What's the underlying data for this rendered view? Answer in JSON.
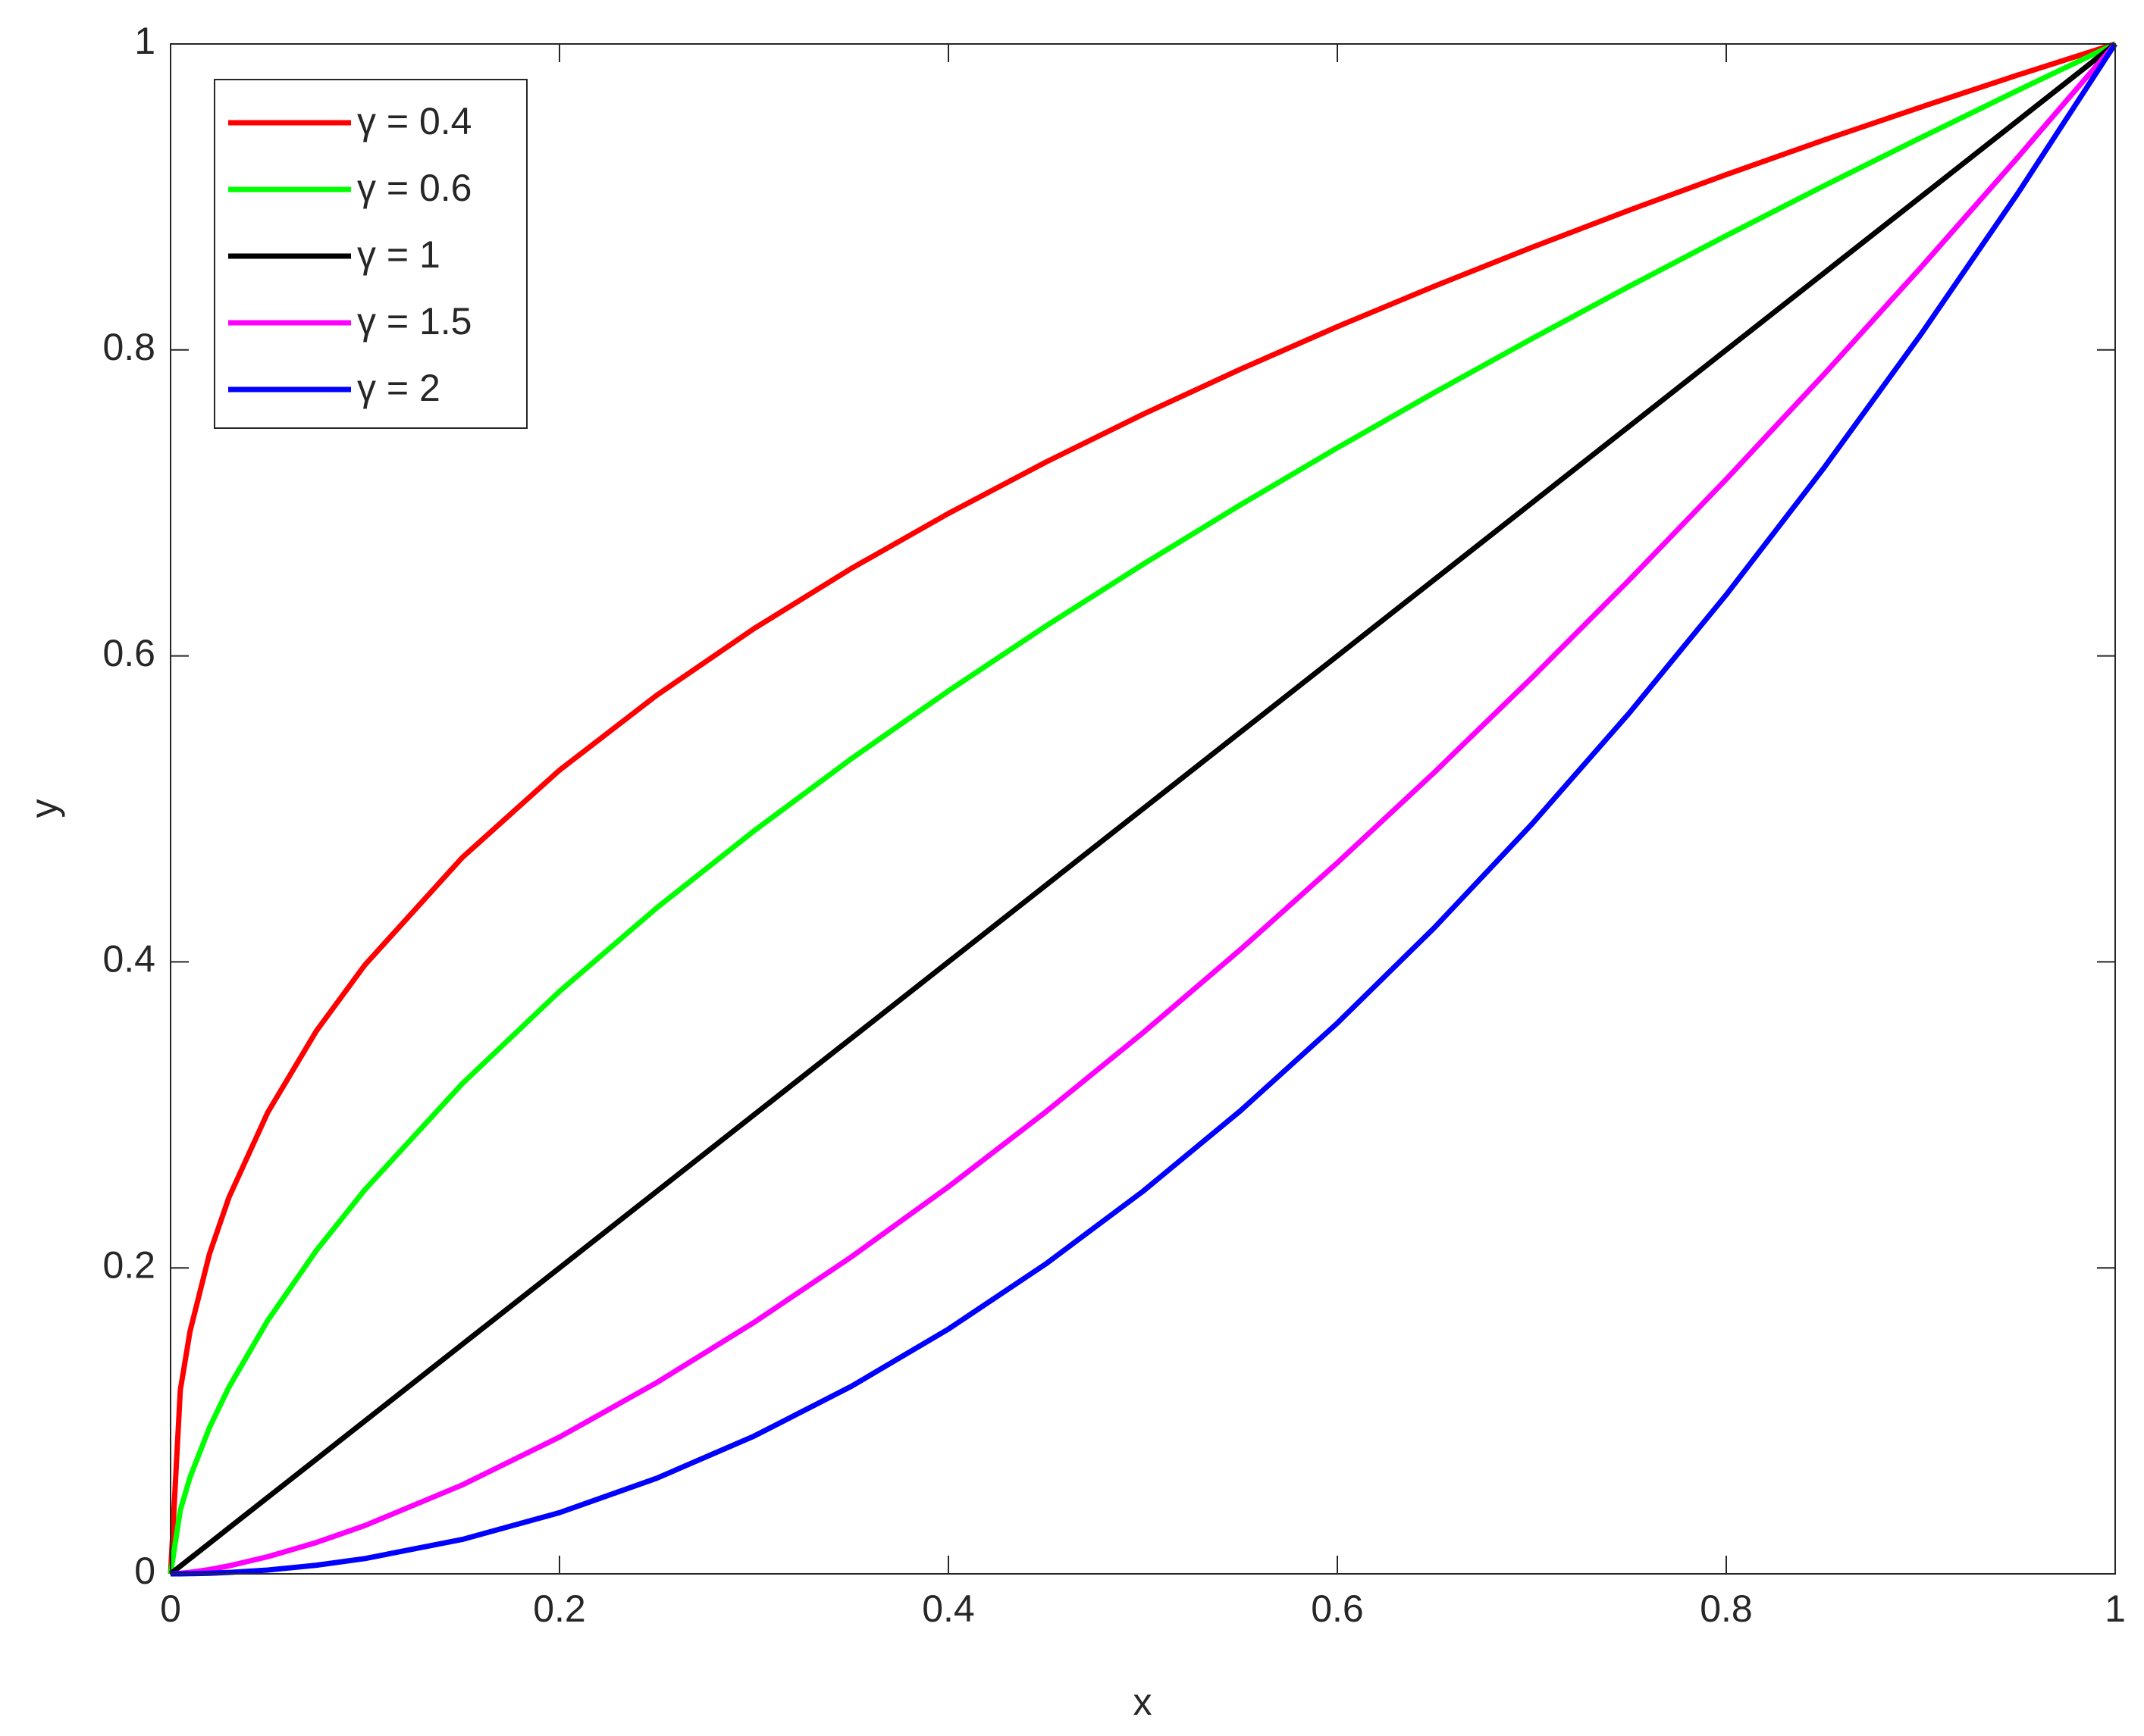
{
  "chart_data": {
    "type": "line",
    "xlabel": "x",
    "ylabel": "y",
    "x": [
      0,
      0.005,
      0.01,
      0.02,
      0.03,
      0.05,
      0.075,
      0.1,
      0.15,
      0.2,
      0.25,
      0.3,
      0.35,
      0.4,
      0.45,
      0.5,
      0.55,
      0.6,
      0.65,
      0.7,
      0.75,
      0.8,
      0.85,
      0.9,
      0.95,
      1
    ],
    "series": [
      {
        "name": "γ = 0.4",
        "color": "#ff0000",
        "values": [
          0,
          0.1201,
          0.1585,
          0.2091,
          0.246,
          0.3017,
          0.3549,
          0.3981,
          0.4682,
          0.5253,
          0.5743,
          0.6178,
          0.6571,
          0.6931,
          0.7266,
          0.7579,
          0.7873,
          0.8152,
          0.8417,
          0.867,
          0.8913,
          0.9146,
          0.9371,
          0.9587,
          0.9797,
          1
        ]
      },
      {
        "name": "γ = 0.6",
        "color": "#00ff00",
        "values": [
          0,
          0.0416,
          0.0631,
          0.0956,
          0.122,
          0.1657,
          0.2114,
          0.2512,
          0.3204,
          0.3807,
          0.4353,
          0.4856,
          0.5327,
          0.5771,
          0.6194,
          0.6598,
          0.6986,
          0.736,
          0.7722,
          0.8073,
          0.8415,
          0.8747,
          0.9071,
          0.9387,
          0.9697,
          1
        ]
      },
      {
        "name": "γ = 1",
        "color": "#000000",
        "values": [
          0,
          0.005,
          0.01,
          0.02,
          0.03,
          0.05,
          0.075,
          0.1,
          0.15,
          0.2,
          0.25,
          0.3,
          0.35,
          0.4,
          0.45,
          0.5,
          0.55,
          0.6,
          0.65,
          0.7,
          0.75,
          0.8,
          0.85,
          0.9,
          0.95,
          1
        ]
      },
      {
        "name": "γ = 1.5",
        "color": "#ff00ff",
        "values": [
          0,
          0.000354,
          0.001,
          0.00283,
          0.0052,
          0.0112,
          0.0205,
          0.0316,
          0.0581,
          0.0894,
          0.125,
          0.1643,
          0.2071,
          0.253,
          0.3019,
          0.3536,
          0.4079,
          0.4648,
          0.524,
          0.5857,
          0.6495,
          0.7155,
          0.7837,
          0.8538,
          0.926,
          1
        ]
      },
      {
        "name": "γ = 2",
        "color": "#0000ff",
        "values": [
          0,
          2.5e-05,
          0.0001,
          0.0004,
          0.0009,
          0.0025,
          0.005625,
          0.01,
          0.0225,
          0.04,
          0.0625,
          0.09,
          0.1225,
          0.16,
          0.2025,
          0.25,
          0.3025,
          0.36,
          0.4225,
          0.49,
          0.5625,
          0.64,
          0.7225,
          0.81,
          0.9025,
          1
        ]
      }
    ],
    "xlim": [
      0,
      1
    ],
    "ylim": [
      0,
      1
    ],
    "xticks": [
      0,
      0.2,
      0.4,
      0.6,
      0.8,
      1
    ],
    "yticks": [
      0,
      0.2,
      0.4,
      0.6,
      0.8,
      1
    ],
    "grid": false,
    "legend": "upper left"
  }
}
